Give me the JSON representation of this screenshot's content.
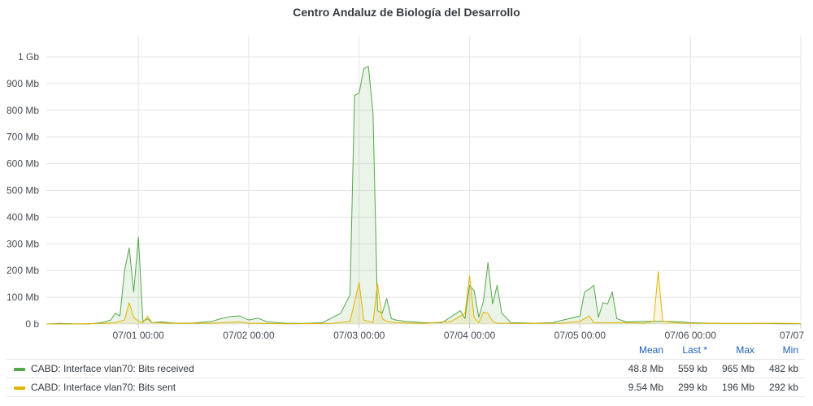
{
  "panel": {
    "title": "Centro Andaluz de Biología del Desarrollo"
  },
  "chart_data": {
    "type": "area",
    "title": "Centro Andaluz de Biología del Desarrollo",
    "y_unit": "Mb",
    "ylim": [
      0,
      1000
    ],
    "y_ticks": [
      {
        "value": 0,
        "label": "0 b"
      },
      {
        "value": 100,
        "label": "100 Mb"
      },
      {
        "value": 200,
        "label": "200 Mb"
      },
      {
        "value": 300,
        "label": "300 Mb"
      },
      {
        "value": 400,
        "label": "400 Mb"
      },
      {
        "value": 500,
        "label": "500 Mb"
      },
      {
        "value": 600,
        "label": "600 Mb"
      },
      {
        "value": 700,
        "label": "700 Mb"
      },
      {
        "value": 800,
        "label": "800 Mb"
      },
      {
        "value": 900,
        "label": "900 Mb"
      },
      {
        "value": 1000,
        "label": "1 Gb"
      }
    ],
    "xlim": [
      "06/30 04:00",
      "07/07 00:00"
    ],
    "x_ticks": [
      "07/01 00:00",
      "07/02 00:00",
      "07/03 00:00",
      "07/04 00:00",
      "07/05 00:00",
      "07/06 00:00",
      "07/07"
    ],
    "grid": true,
    "series": [
      {
        "name": "CABD: Interface vlan70: Bits received",
        "color": "#56a64b",
        "points": [
          [
            "06/30 04:00",
            0
          ],
          [
            "06/30 07:00",
            2
          ],
          [
            "06/30 10:00",
            1
          ],
          [
            "06/30 13:00",
            0
          ],
          [
            "06/30 16:00",
            5
          ],
          [
            "06/30 18:00",
            15
          ],
          [
            "06/30 19:00",
            40
          ],
          [
            "06/30 20:00",
            30
          ],
          [
            "06/30 21:00",
            200
          ],
          [
            "06/30 22:00",
            285
          ],
          [
            "06/30 23:00",
            120
          ],
          [
            "07/01 00:00",
            325
          ],
          [
            "07/01 01:00",
            10
          ],
          [
            "07/01 02:00",
            20
          ],
          [
            "07/01 03:00",
            5
          ],
          [
            "07/01 05:00",
            8
          ],
          [
            "07/01 08:00",
            3
          ],
          [
            "07/01 12:00",
            4
          ],
          [
            "07/01 16:00",
            10
          ],
          [
            "07/01 18:00",
            20
          ],
          [
            "07/01 20:00",
            28
          ],
          [
            "07/01 22:00",
            30
          ],
          [
            "07/02 00:00",
            15
          ],
          [
            "07/02 02:00",
            22
          ],
          [
            "07/02 04:00",
            8
          ],
          [
            "07/02 08:00",
            3
          ],
          [
            "07/02 12:00",
            2
          ],
          [
            "07/02 16:00",
            5
          ],
          [
            "07/02 20:00",
            40
          ],
          [
            "07/02 22:00",
            110
          ],
          [
            "07/02 23:00",
            855
          ],
          [
            "07/03 00:00",
            865
          ],
          [
            "07/03 01:00",
            955
          ],
          [
            "07/03 02:00",
            965
          ],
          [
            "07/03 03:00",
            790
          ],
          [
            "07/03 04:00",
            50
          ],
          [
            "07/03 05:00",
            40
          ],
          [
            "07/03 06:00",
            95
          ],
          [
            "07/03 07:00",
            20
          ],
          [
            "07/03 08:00",
            15
          ],
          [
            "07/03 10:00",
            10
          ],
          [
            "07/03 14:00",
            5
          ],
          [
            "07/03 18:00",
            5
          ],
          [
            "07/03 22:00",
            50
          ],
          [
            "07/03 23:00",
            20
          ],
          [
            "07/04 00:00",
            145
          ],
          [
            "07/04 01:00",
            125
          ],
          [
            "07/04 02:00",
            25
          ],
          [
            "07/04 03:00",
            85
          ],
          [
            "07/04 04:00",
            230
          ],
          [
            "07/04 05:00",
            75
          ],
          [
            "07/04 06:00",
            145
          ],
          [
            "07/04 07:00",
            40
          ],
          [
            "07/04 09:00",
            5
          ],
          [
            "07/04 14:00",
            3
          ],
          [
            "07/04 18:00",
            5
          ],
          [
            "07/05 00:00",
            30
          ],
          [
            "07/05 01:00",
            120
          ],
          [
            "07/05 02:00",
            130
          ],
          [
            "07/05 03:00",
            145
          ],
          [
            "07/05 04:00",
            25
          ],
          [
            "07/05 05:00",
            80
          ],
          [
            "07/05 06:00",
            75
          ],
          [
            "07/05 07:00",
            120
          ],
          [
            "07/05 08:00",
            20
          ],
          [
            "07/05 10:00",
            8
          ],
          [
            "07/05 14:00",
            10
          ],
          [
            "07/05 18:00",
            10
          ],
          [
            "07/05 22:00",
            8
          ],
          [
            "07/06 00:00",
            5
          ],
          [
            "07/06 04:00",
            3
          ],
          [
            "07/06 08:00",
            2
          ],
          [
            "07/06 12:00",
            2
          ],
          [
            "07/06 16:00",
            2
          ],
          [
            "07/06 20:00",
            1
          ],
          [
            "07/07 00:00",
            1
          ]
        ]
      },
      {
        "name": "CABD: Interface vlan70: Bits sent",
        "color": "#e0b400",
        "points": [
          [
            "06/30 04:00",
            0
          ],
          [
            "06/30 10:00",
            0
          ],
          [
            "06/30 16:00",
            2
          ],
          [
            "06/30 19:00",
            5
          ],
          [
            "06/30 20:00",
            10
          ],
          [
            "06/30 21:00",
            15
          ],
          [
            "06/30 22:00",
            80
          ],
          [
            "06/30 23:00",
            25
          ],
          [
            "07/01 00:00",
            10
          ],
          [
            "07/01 01:00",
            5
          ],
          [
            "07/01 02:00",
            30
          ],
          [
            "07/01 03:00",
            5
          ],
          [
            "07/01 08:00",
            2
          ],
          [
            "07/01 16:00",
            3
          ],
          [
            "07/01 22:00",
            8
          ],
          [
            "07/02 00:00",
            3
          ],
          [
            "07/02 08:00",
            1
          ],
          [
            "07/02 18:00",
            2
          ],
          [
            "07/02 22:00",
            10
          ],
          [
            "07/03 00:00",
            155
          ],
          [
            "07/03 01:00",
            15
          ],
          [
            "07/03 02:00",
            10
          ],
          [
            "07/03 03:00",
            5
          ],
          [
            "07/03 04:00",
            150
          ],
          [
            "07/03 05:00",
            20
          ],
          [
            "07/03 06:00",
            10
          ],
          [
            "07/03 08:00",
            5
          ],
          [
            "07/03 14:00",
            2
          ],
          [
            "07/03 20:00",
            10
          ],
          [
            "07/03 23:00",
            40
          ],
          [
            "07/04 00:00",
            180
          ],
          [
            "07/04 01:00",
            25
          ],
          [
            "07/04 02:00",
            5
          ],
          [
            "07/04 03:00",
            45
          ],
          [
            "07/04 04:00",
            40
          ],
          [
            "07/04 05:00",
            10
          ],
          [
            "07/04 06:00",
            3
          ],
          [
            "07/04 12:00",
            2
          ],
          [
            "07/04 20:00",
            3
          ],
          [
            "07/05 00:00",
            10
          ],
          [
            "07/05 02:00",
            30
          ],
          [
            "07/05 03:00",
            5
          ],
          [
            "07/05 06:00",
            5
          ],
          [
            "07/05 10:00",
            5
          ],
          [
            "07/05 14:00",
            3
          ],
          [
            "07/05 16:00",
            10
          ],
          [
            "07/05 17:00",
            195
          ],
          [
            "07/05 18:00",
            10
          ],
          [
            "07/05 22:00",
            3
          ],
          [
            "07/06 04:00",
            2
          ],
          [
            "07/06 12:00",
            2
          ],
          [
            "07/06 18:00",
            3
          ],
          [
            "07/06 22:00",
            2
          ],
          [
            "07/07 00:00",
            1
          ]
        ]
      }
    ]
  },
  "legend": {
    "headers": {
      "mean": "Mean",
      "last": "Last *",
      "max": "Max",
      "min": "Min"
    },
    "rows": [
      {
        "name": "CABD: Interface vlan70: Bits received",
        "color": "#56a64b",
        "mean": "48.8 Mb",
        "last": "559 kb",
        "max": "965 Mb",
        "min": "482 kb"
      },
      {
        "name": "CABD: Interface vlan70: Bits sent",
        "color": "#e0b400",
        "mean": "9.54 Mb",
        "last": "299 kb",
        "max": "196 Mb",
        "min": "292 kb"
      }
    ]
  }
}
